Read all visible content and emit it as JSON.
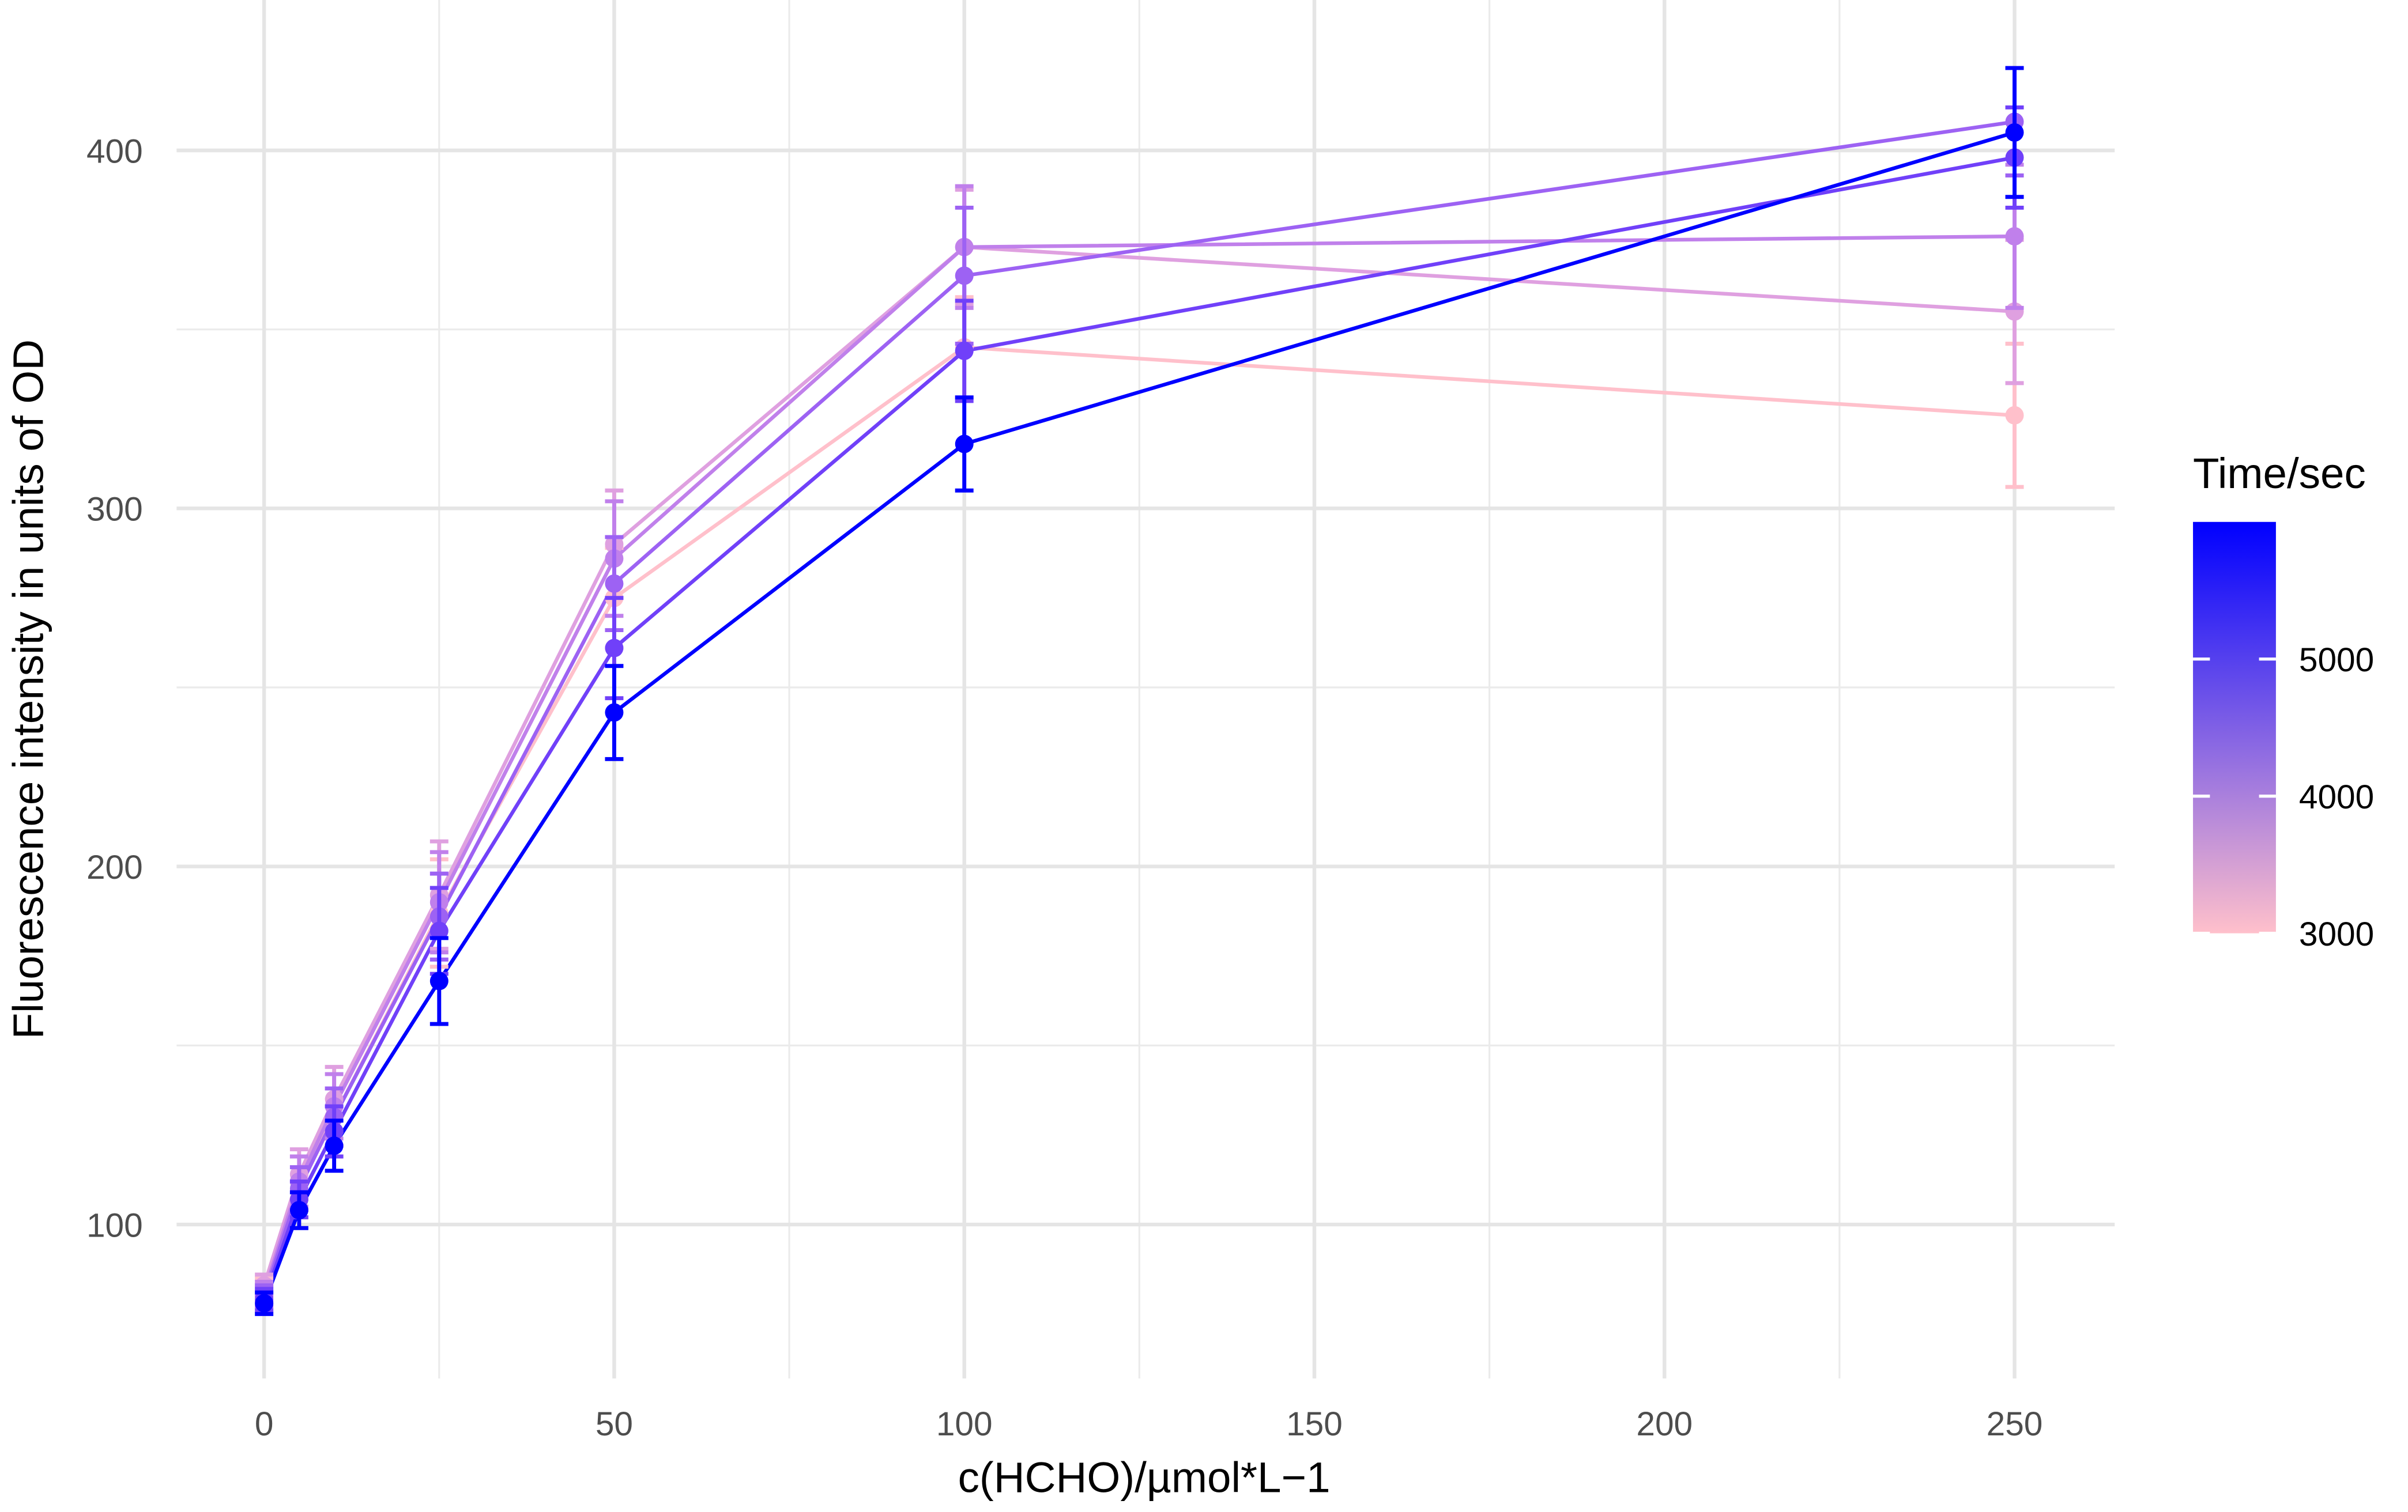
{
  "chart_data": {
    "type": "line",
    "x_label": "c(HCHO)/µmol*L−1",
    "y_label": "Fluorescence intensity in units of OD",
    "x": [
      0,
      5,
      10,
      25,
      50,
      100,
      250
    ],
    "series": [
      {
        "color": "#ffc0cb",
        "values": [
          82,
          112,
          130,
          187,
          275,
          345,
          326
        ],
        "errors": [
          3,
          7,
          8,
          15,
          14,
          14,
          20
        ]
      },
      {
        "color": "#dfa0e0",
        "values": [
          83,
          114,
          135,
          192,
          290,
          373,
          355
        ],
        "errors": [
          3,
          7,
          9,
          15,
          15,
          16,
          20
        ]
      },
      {
        "color": "#c080eb",
        "values": [
          81,
          112,
          133,
          190,
          286,
          373,
          376
        ],
        "errors": [
          3,
          7,
          9,
          14,
          16,
          17,
          20
        ]
      },
      {
        "color": "#9d62f3",
        "values": [
          80,
          110,
          130,
          186,
          279,
          365,
          408
        ],
        "errors": [
          3,
          6,
          8,
          12,
          13,
          19,
          15
        ]
      },
      {
        "color": "#7040f9",
        "values": [
          79,
          107,
          126,
          182,
          261,
          344,
          398
        ],
        "errors": [
          3,
          5,
          7,
          12,
          14,
          14,
          14
        ]
      },
      {
        "color": "#0000ff",
        "values": [
          78,
          104,
          122,
          168,
          243,
          318,
          405
        ],
        "errors": [
          3,
          5,
          7,
          12,
          13,
          13,
          18
        ]
      }
    ],
    "xlim": [
      -12.5,
      264.3
    ],
    "xticks": [
      0,
      50,
      100,
      150,
      200,
      250
    ],
    "xminor": [
      25,
      75,
      125,
      175,
      225
    ],
    "ylim": [
      57,
      442
    ],
    "yticks": [
      100,
      200,
      300,
      400
    ],
    "yminor": [
      150,
      250,
      350
    ],
    "grid": true,
    "colorbar": {
      "title": "Time/sec",
      "lim": [
        3000,
        6000
      ],
      "ticks": [
        3000,
        4000,
        5000
      ],
      "colors": [
        "#ffc0cb",
        "#0000ff"
      ]
    }
  }
}
